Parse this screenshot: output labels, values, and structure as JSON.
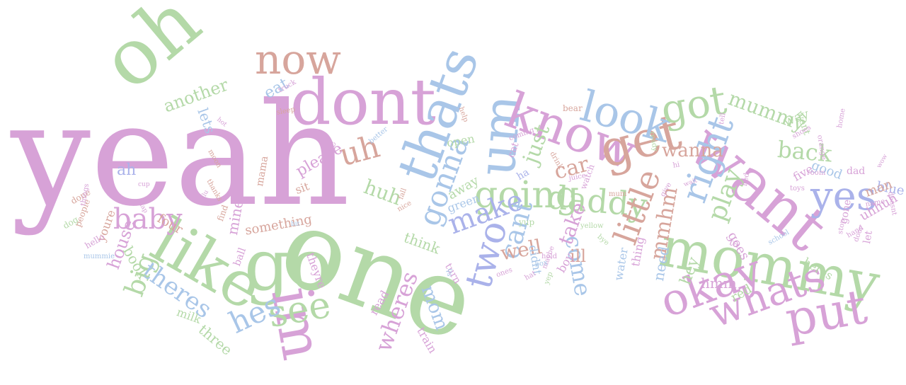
{
  "palette": {
    "pink": "#d7a2d7",
    "green": "#b4d9a8",
    "blue": "#a9c6e8",
    "rose": "#d7a59c",
    "periwinkle": "#aab2ea"
  },
  "words": [
    {
      "text": "yeah",
      "color": "pink"
    },
    {
      "text": "one",
      "color": "green"
    },
    {
      "text": "oh",
      "color": "green"
    },
    {
      "text": "dont",
      "color": "pink"
    },
    {
      "text": "now",
      "color": "rose"
    },
    {
      "text": "go",
      "color": "green"
    },
    {
      "text": "like",
      "color": "green"
    },
    {
      "text": "im",
      "color": "pink"
    },
    {
      "text": "thats",
      "color": "blue"
    },
    {
      "text": "um",
      "color": "blue"
    },
    {
      "text": "uh",
      "color": "rose"
    },
    {
      "text": "know",
      "color": "pink"
    },
    {
      "text": "get",
      "color": "rose"
    },
    {
      "text": "look",
      "color": "blue"
    },
    {
      "text": "got",
      "color": "green"
    },
    {
      "text": "want",
      "color": "pink"
    },
    {
      "text": "mommy",
      "color": "green"
    },
    {
      "text": "yes",
      "color": "periwinkle"
    },
    {
      "text": "put",
      "color": "pink"
    },
    {
      "text": "okay",
      "color": "pink"
    },
    {
      "text": "whats",
      "color": "pink"
    },
    {
      "text": "going",
      "color": "green"
    },
    {
      "text": "daddy",
      "color": "green"
    },
    {
      "text": "right",
      "color": "blue"
    },
    {
      "text": "little",
      "color": "rose"
    },
    {
      "text": "gonna",
      "color": "blue"
    },
    {
      "text": "see",
      "color": "green"
    },
    {
      "text": "hes",
      "color": "blue"
    },
    {
      "text": "two",
      "color": "periwinkle"
    },
    {
      "text": "make",
      "color": "periwinkle"
    },
    {
      "text": "cant",
      "color": "blue"
    },
    {
      "text": "baby",
      "color": "pink"
    },
    {
      "text": "big",
      "color": "green"
    },
    {
      "text": "theres",
      "color": "blue"
    },
    {
      "text": "another",
      "color": "green"
    },
    {
      "text": "mummy",
      "color": "green"
    },
    {
      "text": "back",
      "color": "green"
    },
    {
      "text": "play",
      "color": "green"
    },
    {
      "text": "come",
      "color": "blue"
    },
    {
      "text": "wanna",
      "color": "rose"
    },
    {
      "text": "mmhm",
      "color": "rose"
    },
    {
      "text": "wheres",
      "color": "pink"
    },
    {
      "text": "mom",
      "color": "blue"
    },
    {
      "text": "huh",
      "color": "green"
    },
    {
      "text": "car",
      "color": "rose"
    },
    {
      "text": "just",
      "color": "green"
    },
    {
      "text": "take",
      "color": "pink"
    },
    {
      "text": "well",
      "color": "rose"
    },
    {
      "text": "ill",
      "color": "rose"
    },
    {
      "text": "eat",
      "color": "blue"
    },
    {
      "text": "lets",
      "color": "blue"
    },
    {
      "text": "ah",
      "color": "periwinkle"
    },
    {
      "text": "please",
      "color": "pink"
    },
    {
      "text": "house",
      "color": "pink"
    },
    {
      "text": "book",
      "color": "green"
    },
    {
      "text": "four",
      "color": "rose"
    },
    {
      "text": "three",
      "color": "green"
    },
    {
      "text": "mine",
      "color": "pink"
    },
    {
      "text": "something",
      "color": "rose"
    },
    {
      "text": "hmm",
      "color": "pink"
    },
    {
      "text": "hey",
      "color": "green"
    },
    {
      "text": "need",
      "color": "blue"
    },
    {
      "text": "way",
      "color": "green"
    },
    {
      "text": "good",
      "color": "blue"
    },
    {
      "text": "blue",
      "color": "periwinkle"
    },
    {
      "text": "uhhuh",
      "color": "pink"
    },
    {
      "text": "goes",
      "color": "pink"
    },
    {
      "text": "think",
      "color": "green"
    },
    {
      "text": "away",
      "color": "green"
    },
    {
      "text": "open",
      "color": "green"
    },
    {
      "text": "green",
      "color": "blue"
    },
    {
      "text": "red",
      "color": "green"
    },
    {
      "text": "theyre",
      "color": "pink"
    },
    {
      "text": "read",
      "color": "pink"
    },
    {
      "text": "train",
      "color": "pink"
    },
    {
      "text": "sit",
      "color": "rose"
    },
    {
      "text": "time",
      "color": "pink"
    },
    {
      "text": "mama",
      "color": "rose"
    },
    {
      "text": "ball",
      "color": "pink"
    },
    {
      "text": "milk",
      "color": "green"
    },
    {
      "text": "youre",
      "color": "rose"
    },
    {
      "text": "water",
      "color": "blue"
    },
    {
      "text": "thing",
      "color": "pink"
    },
    {
      "text": "boy",
      "color": "pink"
    },
    {
      "text": "didnt",
      "color": "blue"
    },
    {
      "text": "heres",
      "color": "green"
    },
    {
      "text": "five",
      "color": "pink"
    },
    {
      "text": "gone",
      "color": "pink"
    },
    {
      "text": "dad",
      "color": "pink"
    },
    {
      "text": "let",
      "color": "pink"
    },
    {
      "text": "ta",
      "color": "pink"
    },
    {
      "text": "man",
      "color": "rose"
    },
    {
      "text": "ha",
      "color": "periwinkle"
    },
    {
      "text": "turn",
      "color": "pink"
    },
    {
      "text": "went",
      "color": "green"
    },
    {
      "text": "dog",
      "color": "green"
    },
    {
      "text": "hello",
      "color": "pink"
    },
    {
      "text": "done",
      "color": "rose"
    },
    {
      "text": "people",
      "color": "rose"
    },
    {
      "text": "find",
      "color": "rose"
    },
    {
      "text": "cat",
      "color": "pink"
    },
    {
      "text": "yup",
      "color": "green"
    },
    {
      "text": "watch",
      "color": "pink"
    },
    {
      "text": "drink",
      "color": "rose"
    },
    {
      "text": "bear",
      "color": "rose"
    },
    {
      "text": "help",
      "color": "rose"
    },
    {
      "text": "truck",
      "color": "pink"
    },
    {
      "text": "sleep",
      "color": "rose"
    },
    {
      "text": "better",
      "color": "blue"
    },
    {
      "text": "moon",
      "color": "rose"
    },
    {
      "text": "thanks",
      "color": "rose"
    },
    {
      "text": "fall",
      "color": "rose"
    },
    {
      "text": "home",
      "color": "pink"
    },
    {
      "text": "nice",
      "color": "rose"
    },
    {
      "text": "coming",
      "color": "pink"
    },
    {
      "text": "juice",
      "color": "pink"
    },
    {
      "text": "yellow",
      "color": "green"
    },
    {
      "text": "mum",
      "color": "rose"
    },
    {
      "text": "bye",
      "color": "green"
    },
    {
      "text": "maybe",
      "color": "pink"
    },
    {
      "text": "yep",
      "color": "green"
    },
    {
      "text": "hold",
      "color": "pink"
    },
    {
      "text": "box",
      "color": "blue"
    },
    {
      "text": "hat",
      "color": "pink"
    },
    {
      "text": "ones",
      "color": "pink"
    },
    {
      "text": "sh",
      "color": "blue"
    },
    {
      "text": "hi",
      "color": "pink"
    },
    {
      "text": "give",
      "color": "pink"
    },
    {
      "text": "tell",
      "color": "pink"
    },
    {
      "text": "bed",
      "color": "pink"
    },
    {
      "text": "toys",
      "color": "pink"
    },
    {
      "text": "school",
      "color": "blue"
    },
    {
      "text": "name",
      "color": "pink"
    },
    {
      "text": "door",
      "color": "pink"
    },
    {
      "text": "doesnt",
      "color": "pink"
    },
    {
      "text": "hand",
      "color": "pink"
    },
    {
      "text": "orange",
      "color": "pink"
    },
    {
      "text": "room",
      "color": "pink"
    },
    {
      "text": "shoes",
      "color": "pink"
    },
    {
      "text": "stop",
      "color": "pink"
    },
    {
      "text": "ready",
      "color": "green"
    },
    {
      "text": "things",
      "color": "pink"
    },
    {
      "text": "mummie",
      "color": "blue"
    },
    {
      "text": "cup",
      "color": "pink"
    },
    {
      "text": "clap",
      "color": "pink"
    },
    {
      "text": "lot",
      "color": "pink"
    },
    {
      "text": "hot",
      "color": "pink"
    },
    {
      "text": "bit",
      "color": "blue"
    },
    {
      "text": "lu",
      "color": "pink"
    },
    {
      "text": "wait",
      "color": "pink"
    },
    {
      "text": "wow",
      "color": "pink"
    }
  ]
}
